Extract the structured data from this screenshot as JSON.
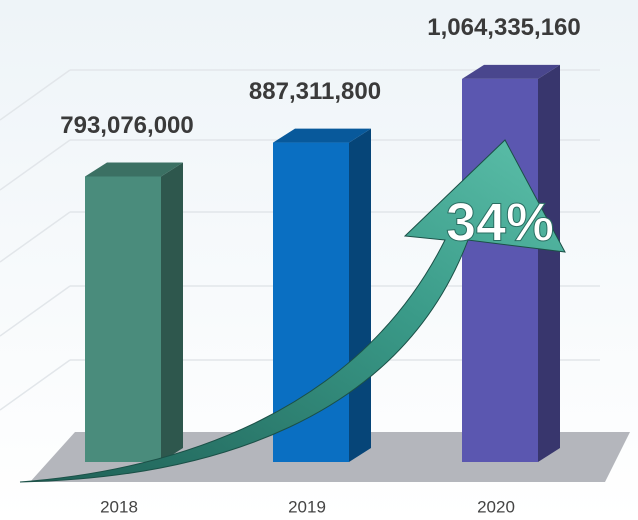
{
  "chart_data": {
    "type": "bar3d",
    "categories": [
      "2018",
      "2019",
      "2020"
    ],
    "values": [
      793076000,
      887311800,
      1064335160
    ],
    "value_labels": [
      "793,076,000",
      "887,311,800",
      "1,064,335,160"
    ],
    "colors": [
      "#4a8c7c",
      "#0a6fc2",
      "#5b57b0"
    ],
    "ylim": [
      0,
      1200000000
    ],
    "annotation": "34%"
  }
}
